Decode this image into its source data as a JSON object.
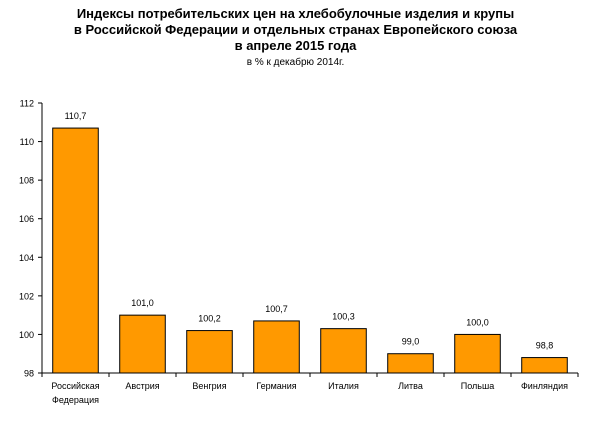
{
  "chart_data": {
    "type": "bar",
    "title_lines": [
      "Индексы потребительских цен на хлебобулочные изделия и крупы",
      "в Российской Федерации и отдельных странах Европейского союза",
      "в апреле 2015 года"
    ],
    "subtitle": "в % к декабрю 2014г.",
    "categories": [
      [
        "Российская",
        "Федерация"
      ],
      [
        "Австрия"
      ],
      [
        "Венгрия"
      ],
      [
        "Германия"
      ],
      [
        "Италия"
      ],
      [
        "Литва"
      ],
      [
        "Польша"
      ],
      [
        "Финляндия"
      ]
    ],
    "values": [
      110.7,
      101.0,
      100.2,
      100.7,
      100.3,
      99.0,
      100.0,
      98.8
    ],
    "value_labels": [
      "110,7",
      "101,0",
      "100,2",
      "100,7",
      "100,3",
      "99,0",
      "100,0",
      "98,8"
    ],
    "ylim": [
      98,
      112
    ],
    "yticks": [
      98,
      100,
      102,
      104,
      106,
      108,
      110,
      112
    ],
    "grid": false,
    "legend": "none",
    "bar_color": "#FF9900",
    "bar_edge_color": "#000000"
  }
}
